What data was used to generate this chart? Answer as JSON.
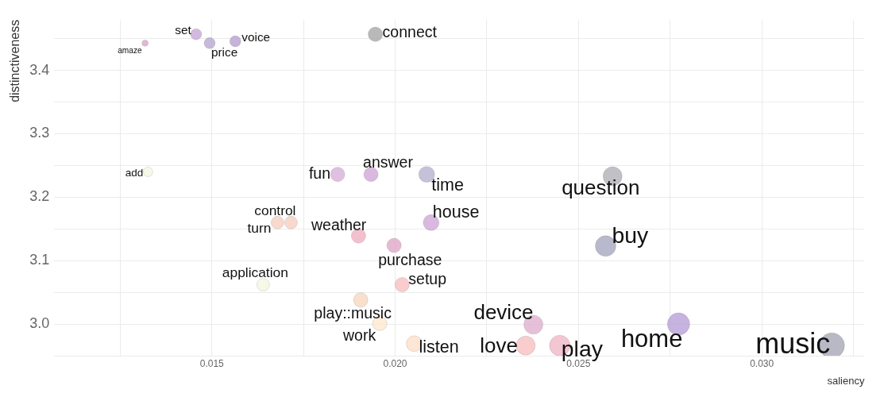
{
  "chart_data": {
    "type": "bubble",
    "xlabel": "saliency",
    "ylabel": "distinctiveness",
    "x": [
      0.01318,
      0.01457,
      0.01494,
      0.01564,
      0.01946,
      0.01326,
      0.01843,
      0.01934,
      0.02086,
      0.02593,
      0.01716,
      0.01679,
      0.019,
      0.02098,
      0.01997,
      0.02574,
      0.0164,
      0.02019,
      0.01906,
      0.01958,
      0.02052,
      0.02377,
      0.02356,
      0.02449,
      0.02773,
      0.03191
    ],
    "values": [
      3.443,
      3.457,
      3.443,
      3.446,
      3.457,
      3.24,
      3.236,
      3.236,
      3.236,
      3.233,
      3.16,
      3.16,
      3.139,
      3.16,
      3.124,
      3.123,
      3.062,
      3.062,
      3.038,
      3.001,
      2.969,
      2.999,
      2.966,
      2.966,
      3.0,
      2.966
    ],
    "sizes": [
      0.06,
      0.19,
      0.19,
      0.19,
      0.32,
      0.14,
      0.32,
      0.32,
      0.39,
      0.56,
      0.25,
      0.25,
      0.32,
      0.39,
      0.32,
      0.66,
      0.25,
      0.32,
      0.32,
      0.32,
      0.39,
      0.56,
      0.56,
      0.66,
      0.77,
      1
    ],
    "value_labels": [
      "amaze",
      "set",
      "price",
      "voice",
      "connect",
      "add",
      "fun",
      "answer",
      "time",
      "question",
      "control",
      "turn",
      "weather",
      "house",
      "purchase",
      "buy",
      "application",
      "setup",
      "play::music",
      "work",
      "listen",
      "device",
      "love",
      "play",
      "home",
      "music"
    ],
    "colors": [
      "#d8a8c8",
      "#c8a8d8",
      "#b8a8d0",
      "#b8a0d0",
      "#a8a8a8",
      "#f4f8e0",
      "#d8b0d8",
      "#d0a8d8",
      "#b8b0d0",
      "#b0b0b8",
      "#f8d0c0",
      "#f8d0c0",
      "#f0b0c0",
      "#d0a8d8",
      "#e0a8c8",
      "#a8a8c0",
      "#f4f8e0",
      "#f8c0c0",
      "#f8d8c0",
      "#fce8d0",
      "#fce0c8",
      "#e0b0d0",
      "#f8c0c0",
      "#f0b8c8",
      "#b8a0d8",
      "#a8a8b8"
    ],
    "xlim": [
      0.0107,
      0.0328
    ],
    "ylim": [
      2.95,
      3.48
    ],
    "xticks": [
      {
        "value": 0.0125,
        "label": null
      },
      {
        "value": 0.015,
        "label": "0.015"
      },
      {
        "value": 0.0175,
        "label": null
      },
      {
        "value": 0.02,
        "label": "0.020"
      },
      {
        "value": 0.0225,
        "label": null
      },
      {
        "value": 0.025,
        "label": "0.025"
      },
      {
        "value": 0.0275,
        "label": null
      },
      {
        "value": 0.03,
        "label": "0.030"
      },
      {
        "value": 0.0325,
        "label": null
      }
    ],
    "yticks": [
      {
        "value": 2.95,
        "label": null
      },
      {
        "value": 3.0,
        "label": "3.0"
      },
      {
        "value": 3.05,
        "label": null
      },
      3.1,
      {
        "value": 3.15,
        "label": null
      },
      3.2,
      {
        "value": 3.25,
        "label": null
      },
      3.3,
      {
        "value": 3.35,
        "label": null
      },
      3.4,
      {
        "value": 3.45,
        "label": null
      }
    ],
    "grid": true,
    "legend": false
  }
}
